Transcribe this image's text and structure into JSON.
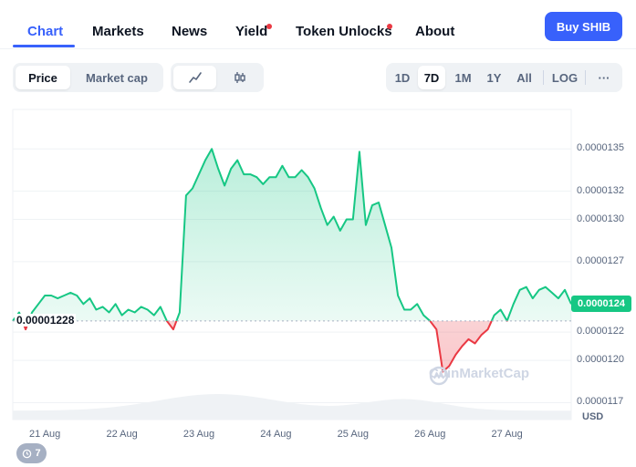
{
  "nav": {
    "tabs": [
      {
        "label": "Chart"
      },
      {
        "label": "Markets"
      },
      {
        "label": "News"
      },
      {
        "label": "Yield"
      },
      {
        "label": "Token Unlocks"
      },
      {
        "label": "About"
      }
    ],
    "buy_label": "Buy SHIB"
  },
  "toolbar": {
    "metric_options": [
      {
        "label": "Price"
      },
      {
        "label": "Market cap"
      }
    ],
    "selected_metric": "Price",
    "chart_styles": [
      {
        "icon": "line-chart-icon"
      },
      {
        "icon": "candlestick-icon"
      }
    ],
    "selected_style": "line-chart-icon",
    "ranges": [
      {
        "label": "1D"
      },
      {
        "label": "7D"
      },
      {
        "label": "1M"
      },
      {
        "label": "1Y"
      },
      {
        "label": "All"
      }
    ],
    "selected_range": "7D",
    "log_label": "LOG",
    "more_label": "···"
  },
  "chart_data": {
    "type": "area",
    "reference_value": 1.228e-05,
    "reference_label": "0.00001228",
    "current_price_label": "0.0000124",
    "current_price": 1.24e-05,
    "currency": "USD",
    "y_ticks": [
      {
        "value": 1.35e-05,
        "label": "0.0000135"
      },
      {
        "value": 1.32e-05,
        "label": "0.0000132"
      },
      {
        "value": 1.3e-05,
        "label": "0.0000130"
      },
      {
        "value": 1.27e-05,
        "label": "0.0000127"
      },
      {
        "value": 1.22e-05,
        "label": "0.0000122"
      },
      {
        "value": 1.2e-05,
        "label": "0.0000120"
      },
      {
        "value": 1.17e-05,
        "label": "0.0000117"
      }
    ],
    "x_ticks": [
      "21 Aug",
      "22 Aug",
      "23 Aug",
      "24 Aug",
      "25 Aug",
      "26 Aug",
      "27 Aug"
    ],
    "x_range": [
      "20 Aug 14:00",
      "27 Aug 20:00"
    ],
    "y_range": [
      1.158e-05,
      1.378e-05
    ],
    "series": [
      {
        "x": [
          "20 Aug 14:00",
          "20 Aug 16:00",
          "20 Aug 18:00",
          "20 Aug 20:00",
          "20 Aug 22:00",
          "21 Aug 00:00",
          "21 Aug 02:00",
          "21 Aug 04:00",
          "21 Aug 06:00",
          "21 Aug 08:00",
          "21 Aug 10:00",
          "21 Aug 12:00",
          "21 Aug 14:00",
          "21 Aug 16:00",
          "21 Aug 18:00",
          "21 Aug 20:00",
          "21 Aug 22:00",
          "22 Aug 00:00",
          "22 Aug 02:00",
          "22 Aug 04:00",
          "22 Aug 06:00",
          "22 Aug 08:00",
          "22 Aug 10:00",
          "22 Aug 12:00",
          "22 Aug 14:00",
          "22 Aug 16:00",
          "22 Aug 18:00",
          "22 Aug 20:00",
          "22 Aug 22:00",
          "23 Aug 00:00",
          "23 Aug 02:00",
          "23 Aug 04:00",
          "23 Aug 06:00",
          "23 Aug 08:00",
          "23 Aug 10:00",
          "23 Aug 12:00",
          "23 Aug 14:00",
          "23 Aug 16:00",
          "23 Aug 18:00",
          "23 Aug 20:00",
          "23 Aug 22:00",
          "24 Aug 00:00",
          "24 Aug 02:00",
          "24 Aug 04:00",
          "24 Aug 06:00",
          "24 Aug 08:00",
          "24 Aug 10:00",
          "24 Aug 12:00",
          "24 Aug 14:00",
          "24 Aug 16:00",
          "24 Aug 18:00",
          "24 Aug 20:00",
          "24 Aug 22:00",
          "25 Aug 00:00",
          "25 Aug 02:00",
          "25 Aug 04:00",
          "25 Aug 06:00",
          "25 Aug 08:00",
          "25 Aug 10:00",
          "25 Aug 12:00",
          "25 Aug 14:00",
          "25 Aug 16:00",
          "25 Aug 18:00",
          "25 Aug 20:00",
          "25 Aug 22:00",
          "26 Aug 00:00",
          "26 Aug 02:00",
          "26 Aug 04:00",
          "26 Aug 06:00",
          "26 Aug 08:00",
          "26 Aug 10:00",
          "26 Aug 12:00",
          "26 Aug 14:00",
          "26 Aug 16:00",
          "26 Aug 18:00",
          "26 Aug 20:00",
          "26 Aug 22:00",
          "27 Aug 00:00",
          "27 Aug 02:00",
          "27 Aug 04:00",
          "27 Aug 06:00",
          "27 Aug 08:00",
          "27 Aug 10:00",
          "27 Aug 12:00",
          "27 Aug 14:00",
          "27 Aug 16:00",
          "27 Aug 18:00",
          "27 Aug 20:00"
        ],
        "values": [
          1.228e-05,
          1.234e-05,
          1.222e-05,
          1.234e-05,
          1.24e-05,
          1.246e-05,
          1.246e-05,
          1.244e-05,
          1.246e-05,
          1.248e-05,
          1.246e-05,
          1.24e-05,
          1.244e-05,
          1.236e-05,
          1.238e-05,
          1.234e-05,
          1.24e-05,
          1.232e-05,
          1.236e-05,
          1.234e-05,
          1.238e-05,
          1.236e-05,
          1.232e-05,
          1.238e-05,
          1.228e-05,
          1.222e-05,
          1.234e-05,
          1.317e-05,
          1.322e-05,
          1.332e-05,
          1.342e-05,
          1.35e-05,
          1.336e-05,
          1.324e-05,
          1.336e-05,
          1.342e-05,
          1.332e-05,
          1.332e-05,
          1.33e-05,
          1.325e-05,
          1.33e-05,
          1.33e-05,
          1.338e-05,
          1.33e-05,
          1.33e-05,
          1.335e-05,
          1.33e-05,
          1.322e-05,
          1.308e-05,
          1.296e-05,
          1.302e-05,
          1.292e-05,
          1.3e-05,
          1.3e-05,
          1.348e-05,
          1.296e-05,
          1.31e-05,
          1.312e-05,
          1.296e-05,
          1.28e-05,
          1.246e-05,
          1.236e-05,
          1.236e-05,
          1.24e-05,
          1.232e-05,
          1.228e-05,
          1.222e-05,
          1.192e-05,
          1.196e-05,
          1.204e-05,
          1.21e-05,
          1.215e-05,
          1.212e-05,
          1.218e-05,
          1.222e-05,
          1.232e-05,
          1.236e-05,
          1.228e-05,
          1.24e-05,
          1.25e-05,
          1.252e-05,
          1.244e-05,
          1.25e-05,
          1.252e-05,
          1.248e-05,
          1.244e-05,
          1.25e-05,
          1.24e-05
        ]
      }
    ]
  },
  "watermark": "CoinMarketCap",
  "badge_count": "7"
}
